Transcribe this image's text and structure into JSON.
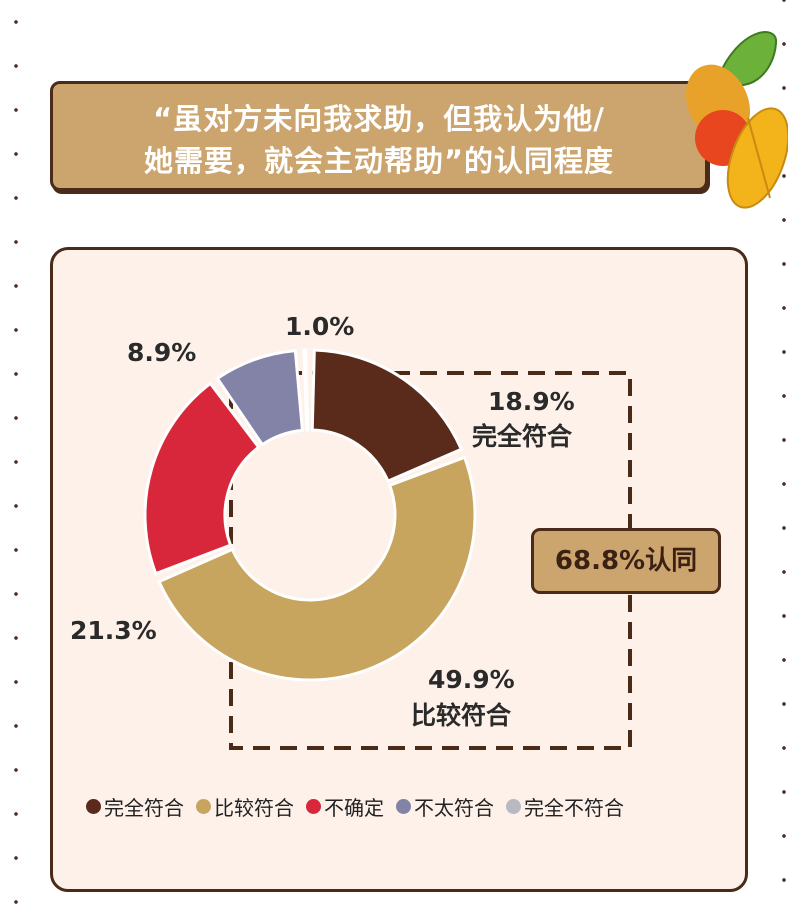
{
  "title": "“虽对方未向我求助，但我认为他/\n她需要，就会主动帮助”的认同程度",
  "badge": "68.8%认同",
  "chart_data": {
    "type": "pie",
    "donut": true,
    "title": "“虽对方未向我求助，但我认为他/她需要，就会主动帮助”的认同程度",
    "slices": [
      {
        "name": "完全符合",
        "value": 18.9,
        "label": "18.9%",
        "color": "#5a2b1a"
      },
      {
        "name": "比较符合",
        "value": 49.9,
        "label": "49.9%",
        "color": "#c8a55e"
      },
      {
        "name": "不确定",
        "value": 21.3,
        "label": "21.3%",
        "color": "#d8263a"
      },
      {
        "name": "不太符合",
        "value": 8.9,
        "label": "8.9%",
        "color": "#8383a8"
      },
      {
        "name": "完全不符合",
        "value": 1.0,
        "label": "1.0%",
        "color": "#b9b9c2"
      }
    ],
    "legend_position": "bottom"
  }
}
